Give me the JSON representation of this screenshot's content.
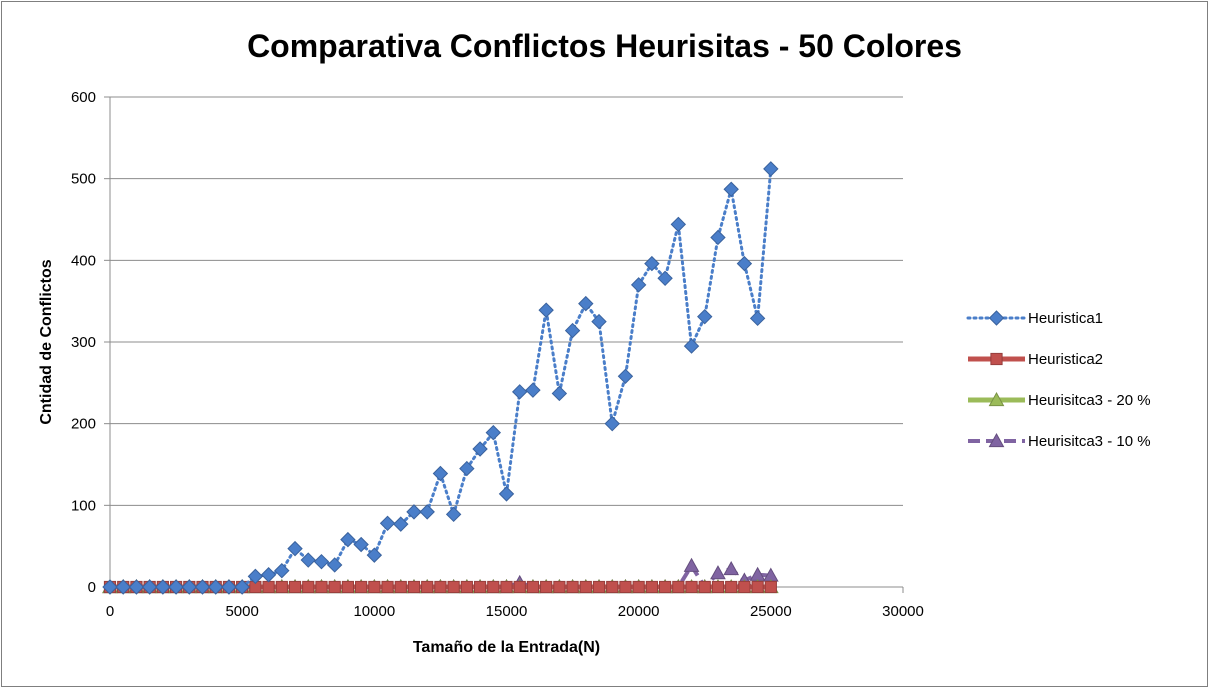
{
  "chart_data": {
    "type": "line",
    "title": "Comparativa Conflictos Heurisitas - 50 Colores",
    "xlabel": "Tamaño de la Entrada(N)",
    "ylabel": "Cntidad de Conflictos",
    "xlim": [
      0,
      30000
    ],
    "ylim": [
      0,
      600
    ],
    "xticks": [
      0,
      5000,
      10000,
      15000,
      20000,
      25000,
      30000
    ],
    "yticks": [
      0,
      100,
      200,
      300,
      400,
      500,
      600
    ],
    "grid": "horizontal",
    "legend_position": "right",
    "x": [
      0,
      500,
      1000,
      1500,
      2000,
      2500,
      3000,
      3500,
      4000,
      4500,
      5000,
      5500,
      6000,
      6500,
      7000,
      7500,
      8000,
      8500,
      9000,
      9500,
      10000,
      10500,
      11000,
      11500,
      12000,
      12500,
      13000,
      13500,
      14000,
      14500,
      15000,
      15500,
      16000,
      16500,
      17000,
      17500,
      18000,
      18500,
      19000,
      19500,
      20000,
      20500,
      21000,
      21500,
      22000,
      22500,
      23000,
      23500,
      24000,
      24500,
      25000
    ],
    "series": [
      {
        "name": "Heuristica1",
        "color": "#4a7ec9",
        "line": "dotted",
        "marker": "diamond",
        "values": [
          0,
          0,
          0,
          0,
          0,
          0,
          0,
          0,
          0,
          0,
          0,
          13,
          15,
          20,
          47,
          33,
          31,
          27,
          58,
          52,
          39,
          78,
          77,
          92,
          92,
          139,
          89,
          145,
          169,
          189,
          114,
          239,
          241,
          339,
          237,
          314,
          347,
          325,
          200,
          258,
          370,
          396,
          378,
          444,
          295,
          331,
          428,
          487,
          396,
          329,
          512
        ]
      },
      {
        "name": "Heuristica2",
        "color": "#c0504d",
        "line": "solid",
        "marker": "square",
        "values": [
          0,
          0,
          0,
          0,
          0,
          0,
          0,
          0,
          0,
          0,
          0,
          0,
          0,
          0,
          0,
          0,
          0,
          0,
          0,
          0,
          0,
          0,
          0,
          0,
          0,
          0,
          0,
          0,
          0,
          0,
          0,
          0,
          0,
          0,
          0,
          0,
          0,
          0,
          0,
          0,
          0,
          0,
          0,
          0,
          0,
          0,
          0,
          0,
          0,
          0,
          0
        ]
      },
      {
        "name": "Heurisitca3 - 20 %",
        "color": "#9bbb59",
        "line": "solid",
        "marker": "triangle",
        "values": [
          0,
          0,
          0,
          0,
          0,
          0,
          0,
          0,
          0,
          0,
          0,
          0,
          0,
          0,
          0,
          0,
          0,
          0,
          0,
          0,
          0,
          0,
          0,
          0,
          0,
          0,
          0,
          0,
          0,
          0,
          0,
          0,
          0,
          0,
          0,
          0,
          0,
          0,
          0,
          0,
          0,
          0,
          0,
          0,
          0,
          0,
          0,
          0,
          0,
          0,
          0
        ]
      },
      {
        "name": "Heurisitca3 - 10 %",
        "color": "#8064a2",
        "line": "dashed",
        "marker": "triangle",
        "values": [
          0,
          0,
          0,
          0,
          0,
          0,
          0,
          0,
          0,
          0,
          0,
          0,
          0,
          0,
          0,
          0,
          0,
          0,
          0,
          0,
          0,
          0,
          0,
          0,
          0,
          0,
          0,
          0,
          0,
          0,
          0,
          5,
          0,
          0,
          0,
          0,
          0,
          0,
          0,
          0,
          0,
          0,
          0,
          0,
          26,
          0,
          17,
          22,
          8,
          15,
          14
        ]
      }
    ]
  }
}
